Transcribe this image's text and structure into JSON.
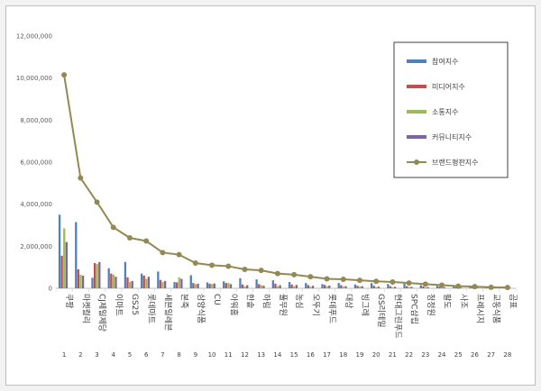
{
  "chart_data": {
    "type": "bar",
    "ylim": [
      0,
      12000000
    ],
    "yticks": [
      "0",
      "2,000,000",
      "4,000,000",
      "6,000,000",
      "8,000,000",
      "10,000,000",
      "12,000,000"
    ],
    "ytick_values": [
      0,
      2000000,
      4000000,
      6000000,
      8000000,
      10000000,
      12000000
    ],
    "grid": false,
    "legend_position": "top-right",
    "categories": [
      "쿠팡",
      "마켓컬리",
      "CJ제일제당",
      "이마트",
      "GS25",
      "롯데마트",
      "세븐일레븐",
      "본죽",
      "삼양식품",
      "CU",
      "아워홈",
      "한솥",
      "하림",
      "풀무원",
      "농심",
      "오뚜기",
      "롯데푸드",
      "대상",
      "빙그레",
      "GS리테일",
      "현대그린푸드",
      "SPC삼립",
      "청정원",
      "팔도",
      "사조",
      "프레시지",
      "교동식품",
      "곰표"
    ],
    "ranks": [
      "1",
      "2",
      "3",
      "4",
      "5",
      "6",
      "7",
      "8",
      "9",
      "10",
      "11",
      "12",
      "13",
      "14",
      "15",
      "16",
      "17",
      "18",
      "19",
      "20",
      "21",
      "22",
      "23",
      "24",
      "25",
      "26",
      "27",
      "28"
    ],
    "series": [
      {
        "name": "참여지수",
        "color": "#4f81bd",
        "values": [
          3500000,
          3150000,
          500000,
          950000,
          1250000,
          700000,
          800000,
          300000,
          620000,
          280000,
          330000,
          480000,
          420000,
          380000,
          300000,
          250000,
          200000,
          250000,
          180000,
          250000,
          200000,
          220000,
          150000,
          120000,
          100000,
          80000,
          70000,
          60000
        ]
      },
      {
        "name": "미디어지수",
        "color": "#c0504d",
        "values": [
          1550000,
          900000,
          1200000,
          700000,
          520000,
          600000,
          400000,
          280000,
          250000,
          220000,
          250000,
          180000,
          200000,
          220000,
          180000,
          150000,
          160000,
          150000,
          120000,
          120000,
          100000,
          100000,
          90000,
          80000,
          60000,
          50000,
          40000,
          30000
        ]
      },
      {
        "name": "소통지수",
        "color": "#9bbb59",
        "values": [
          2850000,
          650000,
          1150000,
          650000,
          300000,
          450000,
          300000,
          520000,
          200000,
          200000,
          250000,
          100000,
          150000,
          100000,
          100000,
          80000,
          100000,
          80000,
          80000,
          60000,
          50000,
          60000,
          40000,
          30000,
          30000,
          20000,
          20000,
          20000
        ]
      },
      {
        "name": "커뮤니티지수",
        "color": "#8064a2",
        "values": [
          2200000,
          600000,
          1250000,
          550000,
          350000,
          550000,
          350000,
          450000,
          220000,
          230000,
          200000,
          150000,
          120000,
          150000,
          160000,
          120000,
          130000,
          100000,
          100000,
          80000,
          70000,
          70000,
          60000,
          50000,
          40000,
          30000,
          30000,
          20000
        ]
      },
      {
        "name": "브랜드평판지수",
        "color": "#938953",
        "type": "line",
        "values": [
          10150000,
          5250000,
          4100000,
          2900000,
          2400000,
          2250000,
          1700000,
          1600000,
          1200000,
          1100000,
          1050000,
          900000,
          850000,
          700000,
          650000,
          550000,
          450000,
          430000,
          380000,
          330000,
          300000,
          250000,
          200000,
          150000,
          100000,
          80000,
          50000,
          40000
        ]
      }
    ]
  }
}
